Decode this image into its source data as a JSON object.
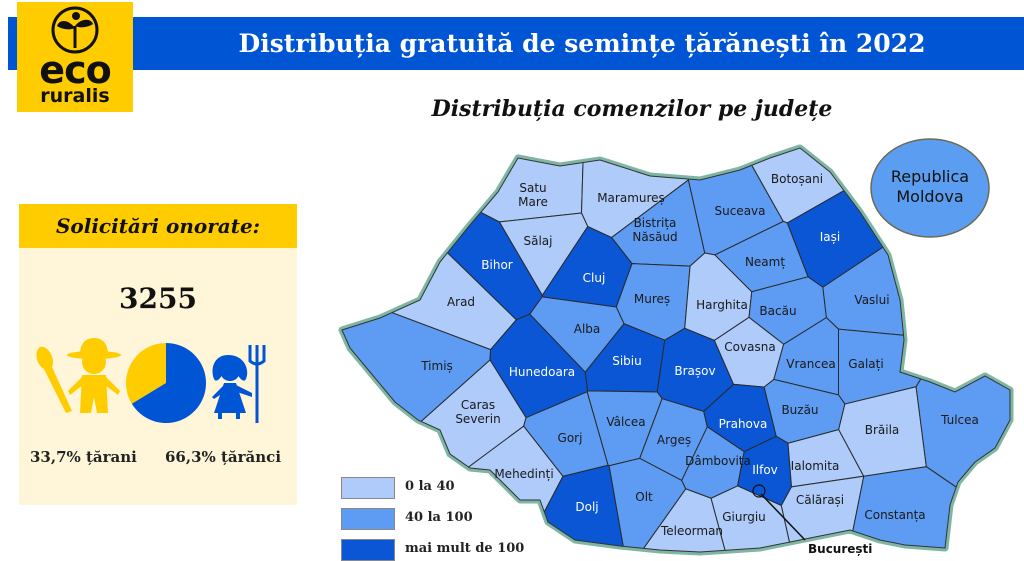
{
  "header": {
    "title": "Distribuția gratuită de semințe țărănești în 2022"
  },
  "logo": {
    "line1": "eco",
    "line2": "ruralis",
    "color": "#ffcc00"
  },
  "panel": {
    "heading": "Solicitări onorate:",
    "count": "3255",
    "men_label": "33,7% țărani",
    "women_label": "66,3% țărănci"
  },
  "chart_data": {
    "type": "pie",
    "slices": [
      {
        "label": "țărani",
        "value": 33.7,
        "color": "#ffcc00"
      },
      {
        "label": "țărănci",
        "value": 66.3,
        "color": "#0055d4"
      }
    ]
  },
  "map": {
    "title": "Distribuția comenzilor pe județe",
    "neighbor": "Republica Moldova",
    "capital": "București",
    "legend": [
      {
        "label": "0  la 40",
        "color": "#aecbfa"
      },
      {
        "label": "40 la 100",
        "color": "#5d9cf2"
      },
      {
        "label": "mai mult de 100",
        "color": "#0a56d4"
      }
    ],
    "counties": [
      {
        "name": "Satu Mare",
        "cat": 0
      },
      {
        "name": "Maramureș",
        "cat": 0
      },
      {
        "name": "Sălaj",
        "cat": 0
      },
      {
        "name": "Bistrița Năsăud",
        "cat": 1
      },
      {
        "name": "Suceava",
        "cat": 1
      },
      {
        "name": "Botoșani",
        "cat": 0
      },
      {
        "name": "Iași",
        "cat": 2
      },
      {
        "name": "Bihor",
        "cat": 2
      },
      {
        "name": "Cluj",
        "cat": 2
      },
      {
        "name": "Arad",
        "cat": 0
      },
      {
        "name": "Mureș",
        "cat": 1
      },
      {
        "name": "Harghita",
        "cat": 0
      },
      {
        "name": "Neamț",
        "cat": 1
      },
      {
        "name": "Bacău",
        "cat": 1
      },
      {
        "name": "Vaslui",
        "cat": 1
      },
      {
        "name": "Alba",
        "cat": 1
      },
      {
        "name": "Timiș",
        "cat": 1
      },
      {
        "name": "Hunedoara",
        "cat": 2
      },
      {
        "name": "Sibiu",
        "cat": 2
      },
      {
        "name": "Brașov",
        "cat": 2
      },
      {
        "name": "Covasna",
        "cat": 0
      },
      {
        "name": "Vrancea",
        "cat": 1
      },
      {
        "name": "Galați",
        "cat": 1
      },
      {
        "name": "Caras Severin",
        "cat": 0
      },
      {
        "name": "Vâlcea",
        "cat": 1
      },
      {
        "name": "Argeș",
        "cat": 1
      },
      {
        "name": "Gorj",
        "cat": 1
      },
      {
        "name": "Prahova",
        "cat": 2
      },
      {
        "name": "Buzău",
        "cat": 1
      },
      {
        "name": "Brăila",
        "cat": 0
      },
      {
        "name": "Tulcea",
        "cat": 1
      },
      {
        "name": "Mehedinți",
        "cat": 0
      },
      {
        "name": "Dolj",
        "cat": 2
      },
      {
        "name": "Olt",
        "cat": 1
      },
      {
        "name": "Dâmbovița",
        "cat": 1
      },
      {
        "name": "Ilfov",
        "cat": 2
      },
      {
        "name": "Ialomita",
        "cat": 0
      },
      {
        "name": "Teleorman",
        "cat": 0
      },
      {
        "name": "Giurgiu",
        "cat": 0
      },
      {
        "name": "Călărași",
        "cat": 0
      },
      {
        "name": "Constanța",
        "cat": 1
      }
    ]
  }
}
